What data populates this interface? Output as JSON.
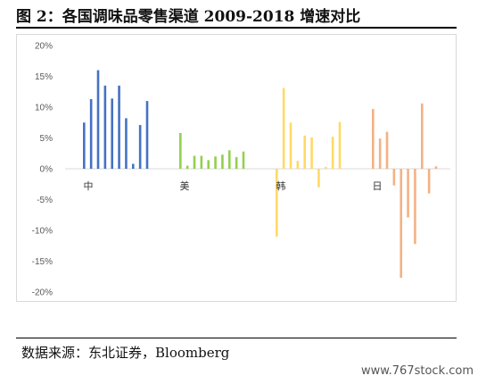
{
  "figure": {
    "title": "图 2：各国调味品零售渠道 2009-2018 增速对比",
    "source": "数据来源：东北证券，Bloomberg",
    "watermark": "www.767stock.com"
  },
  "chart_data": {
    "type": "bar",
    "title": "",
    "xlabel": "",
    "ylabel": "",
    "ylim": [
      -0.2,
      0.2
    ],
    "yticks": [
      "20%",
      "15%",
      "10%",
      "5%",
      "0%",
      "-5%",
      "-10%",
      "-15%",
      "-20%"
    ],
    "grid": false,
    "legend": "none",
    "groups": [
      {
        "name": "中",
        "color": "#4472c4",
        "values": [
          0.075,
          0.113,
          0.16,
          0.135,
          0.114,
          0.135,
          0.082,
          0.008,
          0.071,
          0.11
        ]
      },
      {
        "name": "美",
        "color": "#92d050",
        "values": [
          0.058,
          0.005,
          0.021,
          0.021,
          0.014,
          0.02,
          0.023,
          0.03,
          0.019,
          0.028
        ]
      },
      {
        "name": "韩",
        "color": "#ffd966",
        "values": [
          -0.11,
          0.131,
          0.075,
          0.013,
          0.054,
          0.051,
          -0.03,
          0.003,
          0.052,
          0.076
        ]
      },
      {
        "name": "日",
        "color": "#f4b183",
        "values": [
          0.097,
          0.049,
          0.06,
          -0.027,
          -0.177,
          -0.079,
          -0.122,
          0.106,
          -0.04,
          0.004
        ]
      }
    ]
  }
}
